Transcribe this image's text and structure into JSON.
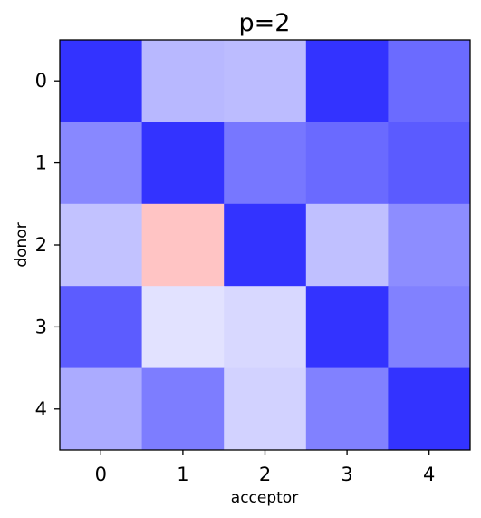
{
  "chart_data": {
    "type": "heatmap",
    "title": "p=2",
    "xlabel": "acceptor",
    "ylabel": "donor",
    "x_categories": [
      "0",
      "1",
      "2",
      "3",
      "4"
    ],
    "y_categories": [
      "0",
      "1",
      "2",
      "3",
      "4"
    ],
    "colormap": "bwr",
    "cell_colors": [
      [
        "#3333ff",
        "#b8b8ff",
        "#bcbcff",
        "#3333ff",
        "#6b6bff"
      ],
      [
        "#8888ff",
        "#3333ff",
        "#7777ff",
        "#6a6aff",
        "#5b5bff"
      ],
      [
        "#c2c2ff",
        "#ffc4c4",
        "#3333ff",
        "#c0c0ff",
        "#8d8dff"
      ],
      [
        "#5c5cff",
        "#e2e2ff",
        "#d8d8ff",
        "#3333ff",
        "#8181ff"
      ],
      [
        "#ababff",
        "#7d7dff",
        "#d2d2ff",
        "#8181ff",
        "#3333ff"
      ]
    ],
    "grid": false,
    "colorbar": false
  }
}
